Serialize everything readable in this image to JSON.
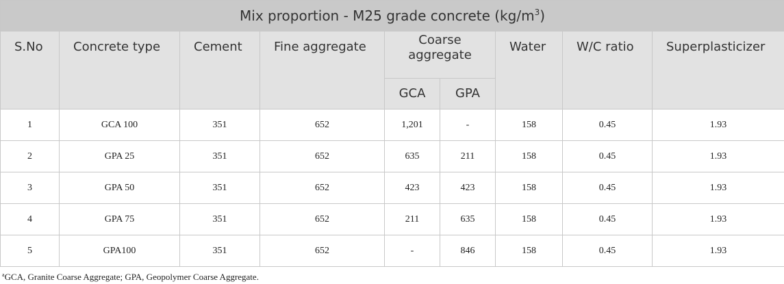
{
  "table": {
    "title_prefix": "Mix proportion - M25 grade concrete (kg/m",
    "title_superscript": "3",
    "title_suffix": ")",
    "headers": {
      "sno": "S.No",
      "concrete_type": "Concrete type",
      "cement": "Cement",
      "fine_aggregate": "Fine aggregate",
      "coarse_aggregate": "Coarse aggregate",
      "gca": "GCA",
      "gpa": "GPA",
      "water": "Water",
      "wc_ratio": "W/C ratio",
      "superplasticizer": "Superplasticizer"
    },
    "rows": [
      [
        "1",
        "GCA 100",
        "351",
        "652",
        "1,201",
        "-",
        "158",
        "0.45",
        "1.93"
      ],
      [
        "2",
        "GPA 25",
        "351",
        "652",
        "635",
        "211",
        "158",
        "0.45",
        "1.93"
      ],
      [
        "3",
        "GPA 50",
        "351",
        "652",
        "423",
        "423",
        "158",
        "0.45",
        "1.93"
      ],
      [
        "4",
        "GPA 75",
        "351",
        "652",
        "211",
        "635",
        "158",
        "0.45",
        "1.93"
      ],
      [
        "5",
        "GPA100",
        "351",
        "652",
        "-",
        "846",
        "158",
        "0.45",
        "1.93"
      ]
    ]
  },
  "footnote": {
    "marker": "a",
    "text": "GCA, Granite Coarse Aggregate; GPA, Geopolymer Coarse Aggregate."
  }
}
